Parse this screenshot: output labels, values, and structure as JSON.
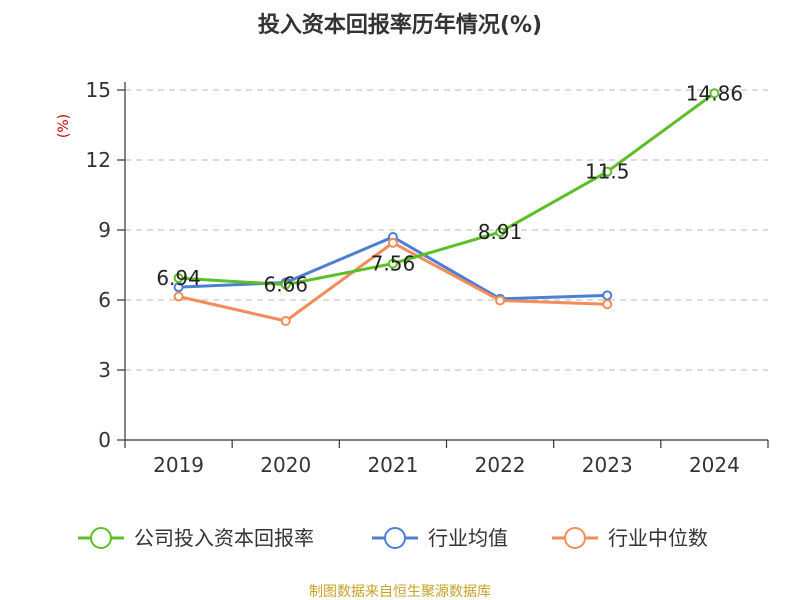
{
  "chart_data": {
    "type": "line",
    "title": "投入资本回报率历年情况(%)",
    "ylabel": "(%)",
    "xlabel": "",
    "categories": [
      "2019",
      "2020",
      "2021",
      "2022",
      "2023",
      "2024"
    ],
    "ylim": [
      0,
      15
    ],
    "yticks": [
      0,
      3,
      6,
      9,
      12,
      15
    ],
    "grid": true,
    "legend_position": "bottom",
    "series": [
      {
        "name": "公司投入资本回报率",
        "color": "#5cbf28",
        "values": [
          6.94,
          6.66,
          7.56,
          8.91,
          11.5,
          14.86
        ],
        "labels": [
          "6.94",
          "6.66",
          "7.56",
          "8.91",
          "11.5",
          "14.86"
        ]
      },
      {
        "name": "行业均值",
        "color": "#4a7fd4",
        "values": [
          6.55,
          6.75,
          8.7,
          6.05,
          6.2,
          null
        ]
      },
      {
        "name": "行业中位数",
        "color": "#f28c5a",
        "values": [
          6.15,
          5.1,
          8.45,
          5.98,
          5.82,
          null
        ]
      }
    ],
    "source": "制图数据来自恒生聚源数据库"
  }
}
